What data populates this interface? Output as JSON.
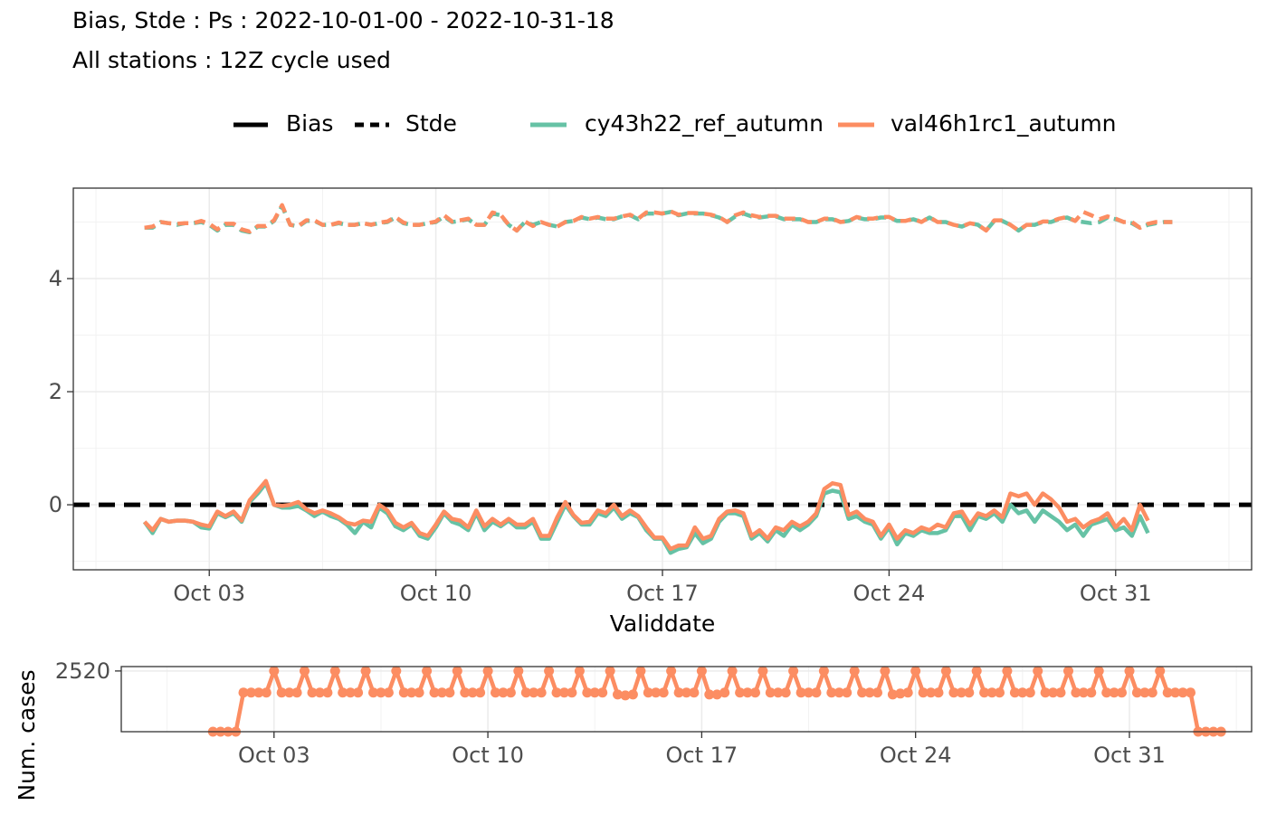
{
  "title": "Bias, Stde : Ps : 2022-10-01-00 - 2022-10-31-18",
  "subtitle": "All stations : 12Z cycle used",
  "legend": {
    "linetype": [
      {
        "label": "Bias",
        "style": "solid"
      },
      {
        "label": "Stde",
        "style": "dashed"
      }
    ],
    "models": [
      {
        "label": "cy43h22_ref_autumn",
        "color": "#66c2a5"
      },
      {
        "label": "val46h1rc1_autumn",
        "color": "#fc8d62"
      }
    ]
  },
  "chart_data": [
    {
      "type": "line",
      "xlabel": "Validdate",
      "ylabel": "",
      "xlim": [
        -2.2,
        34.2
      ],
      "ylim": [
        -1.15,
        5.6
      ],
      "x_ticks": [
        {
          "value": 2,
          "label": "Oct 03"
        },
        {
          "value": 9,
          "label": "Oct 10"
        },
        {
          "value": 16,
          "label": "Oct 17"
        },
        {
          "value": 23,
          "label": "Oct 24"
        },
        {
          "value": 30,
          "label": "Oct 31"
        }
      ],
      "y_ticks": [
        {
          "value": 0,
          "label": "0"
        },
        {
          "value": 2,
          "label": "2"
        },
        {
          "value": 4,
          "label": "4"
        }
      ],
      "x_unit": "days after 2022-10-01 00Z, 6-hourly",
      "reference_line": {
        "y": 0,
        "style": "dashed",
        "color": "#000000"
      },
      "grid": true,
      "series": [
        {
          "name": "cy43h22_ref_autumn",
          "metric": "Bias",
          "color": "#66c2a5",
          "style": "solid",
          "values": [
            -0.3,
            -0.5,
            -0.25,
            -0.3,
            -0.28,
            -0.28,
            -0.3,
            -0.4,
            -0.42,
            -0.15,
            -0.22,
            -0.15,
            -0.3,
            0.05,
            0.2,
            0.38,
            0.0,
            -0.05,
            -0.05,
            -0.02,
            -0.1,
            -0.2,
            -0.12,
            -0.2,
            -0.25,
            -0.35,
            -0.5,
            -0.3,
            -0.4,
            -0.05,
            -0.15,
            -0.38,
            -0.45,
            -0.35,
            -0.55,
            -0.6,
            -0.4,
            -0.15,
            -0.3,
            -0.35,
            -0.45,
            -0.15,
            -0.45,
            -0.3,
            -0.38,
            -0.28,
            -0.4,
            -0.4,
            -0.3,
            -0.6,
            -0.6,
            -0.3,
            0.0,
            -0.2,
            -0.35,
            -0.35,
            -0.15,
            -0.2,
            -0.05,
            -0.25,
            -0.15,
            -0.22,
            -0.45,
            -0.6,
            -0.6,
            -0.85,
            -0.78,
            -0.75,
            -0.5,
            -0.68,
            -0.6,
            -0.3,
            -0.15,
            -0.15,
            -0.2,
            -0.6,
            -0.5,
            -0.65,
            -0.45,
            -0.55,
            -0.35,
            -0.45,
            -0.35,
            -0.2,
            0.2,
            0.25,
            0.22,
            -0.25,
            -0.2,
            -0.3,
            -0.35,
            -0.6,
            -0.4,
            -0.7,
            -0.5,
            -0.55,
            -0.45,
            -0.5,
            -0.5,
            -0.45,
            -0.2,
            -0.2,
            -0.45,
            -0.2,
            -0.25,
            -0.15,
            -0.3,
            0.0,
            -0.15,
            -0.1,
            -0.3,
            -0.1,
            -0.2,
            -0.3,
            -0.45,
            -0.35,
            -0.55,
            -0.35,
            -0.3,
            -0.25,
            -0.45,
            -0.4,
            -0.55,
            -0.2,
            -0.5
          ]
        },
        {
          "name": "val46h1rc1_autumn",
          "metric": "Bias",
          "color": "#fc8d62",
          "style": "solid",
          "values": [
            -0.3,
            -0.45,
            -0.25,
            -0.3,
            -0.28,
            -0.28,
            -0.3,
            -0.35,
            -0.38,
            -0.12,
            -0.2,
            -0.12,
            -0.28,
            0.08,
            0.25,
            0.42,
            0.0,
            -0.02,
            0.0,
            0.05,
            -0.08,
            -0.15,
            -0.1,
            -0.15,
            -0.22,
            -0.32,
            -0.35,
            -0.28,
            -0.3,
            -0.0,
            -0.1,
            -0.32,
            -0.4,
            -0.32,
            -0.5,
            -0.55,
            -0.35,
            -0.12,
            -0.25,
            -0.28,
            -0.4,
            -0.1,
            -0.38,
            -0.25,
            -0.35,
            -0.25,
            -0.35,
            -0.35,
            -0.25,
            -0.55,
            -0.55,
            -0.22,
            0.05,
            -0.18,
            -0.32,
            -0.3,
            -0.1,
            -0.15,
            0.0,
            -0.2,
            -0.1,
            -0.2,
            -0.4,
            -0.58,
            -0.58,
            -0.78,
            -0.72,
            -0.72,
            -0.4,
            -0.6,
            -0.55,
            -0.25,
            -0.12,
            -0.1,
            -0.15,
            -0.55,
            -0.45,
            -0.6,
            -0.4,
            -0.45,
            -0.3,
            -0.38,
            -0.3,
            -0.15,
            0.28,
            0.38,
            0.35,
            -0.18,
            -0.12,
            -0.25,
            -0.3,
            -0.55,
            -0.35,
            -0.6,
            -0.45,
            -0.5,
            -0.4,
            -0.45,
            -0.35,
            -0.4,
            -0.15,
            -0.12,
            -0.35,
            -0.15,
            -0.2,
            -0.1,
            -0.22,
            0.2,
            0.15,
            0.2,
            0.0,
            0.2,
            0.1,
            -0.05,
            -0.3,
            -0.25,
            -0.4,
            -0.3,
            -0.25,
            -0.15,
            -0.4,
            -0.25,
            -0.45,
            0.0,
            -0.28
          ]
        },
        {
          "name": "cy43h22_ref_autumn",
          "metric": "Stde",
          "color": "#66c2a5",
          "style": "dashed",
          "values": [
            4.9,
            4.9,
            5.0,
            4.98,
            4.95,
            4.98,
            4.98,
            5.0,
            4.95,
            4.85,
            4.95,
            4.95,
            4.85,
            4.82,
            4.92,
            4.92,
            5.02,
            5.28,
            4.95,
            4.92,
            5.02,
            5.02,
            4.95,
            4.95,
            4.98,
            4.95,
            4.95,
            4.98,
            4.95,
            4.98,
            5.0,
            5.08,
            4.98,
            4.95,
            4.95,
            4.98,
            5.0,
            5.1,
            5.0,
            5.02,
            5.05,
            4.95,
            4.95,
            5.15,
            5.12,
            4.95,
            4.85,
            5.0,
            4.95,
            5.0,
            4.95,
            4.92,
            5.0,
            5.02,
            5.08,
            5.05,
            5.08,
            5.05,
            5.05,
            5.1,
            5.12,
            5.05,
            5.15,
            5.15,
            5.15,
            5.18,
            5.12,
            5.15,
            5.15,
            5.15,
            5.12,
            5.08,
            5.0,
            5.1,
            5.15,
            5.1,
            5.08,
            5.1,
            5.1,
            5.05,
            5.05,
            5.05,
            5.0,
            5.0,
            5.05,
            5.05,
            5.0,
            5.02,
            5.08,
            5.05,
            5.05,
            5.08,
            5.08,
            5.02,
            5.02,
            5.05,
            5.0,
            5.08,
            5.0,
            5.0,
            4.95,
            4.92,
            4.98,
            4.95,
            4.85,
            5.02,
            5.02,
            4.95,
            4.85,
            4.95,
            4.95,
            5.0,
            5.0,
            5.05,
            5.08,
            5.02,
            5.0,
            4.98,
            5.0,
            5.08,
            5.05,
            5.0,
            4.98,
            4.9,
            4.95,
            4.98,
            5.0,
            5.0
          ]
        },
        {
          "name": "val46h1rc1_autumn",
          "metric": "Stde",
          "color": "#fc8d62",
          "style": "dashed",
          "values": [
            4.9,
            4.92,
            5.0,
            4.98,
            4.97,
            4.98,
            4.98,
            5.02,
            4.97,
            4.87,
            4.97,
            4.97,
            4.87,
            4.83,
            4.93,
            4.93,
            5.03,
            5.3,
            4.95,
            4.93,
            5.03,
            5.03,
            4.95,
            4.95,
            4.99,
            4.95,
            4.95,
            4.98,
            4.95,
            4.99,
            5.01,
            5.09,
            4.99,
            4.95,
            4.95,
            4.98,
            5.01,
            5.12,
            5.01,
            5.03,
            5.06,
            4.95,
            4.95,
            5.17,
            5.13,
            4.95,
            4.85,
            5.01,
            4.93,
            5.0,
            4.95,
            4.92,
            5.0,
            5.02,
            5.09,
            5.06,
            5.09,
            5.06,
            5.06,
            5.1,
            5.13,
            5.06,
            5.17,
            5.17,
            5.15,
            5.19,
            5.13,
            5.16,
            5.16,
            5.15,
            5.13,
            5.09,
            5.0,
            5.12,
            5.17,
            5.12,
            5.09,
            5.11,
            5.11,
            5.06,
            5.06,
            5.06,
            5.0,
            5.0,
            5.06,
            5.06,
            5.0,
            5.02,
            5.09,
            5.06,
            5.06,
            5.09,
            5.09,
            5.02,
            5.02,
            5.06,
            5.0,
            5.09,
            5.0,
            5.0,
            4.95,
            4.92,
            4.98,
            4.95,
            4.85,
            5.03,
            5.03,
            4.95,
            4.85,
            4.95,
            4.95,
            5.01,
            5.01,
            5.06,
            5.09,
            5.02,
            5.18,
            5.12,
            5.05,
            5.1,
            5.06,
            5.0,
            5.0,
            4.9,
            4.97,
            5.0,
            5.0,
            5.0
          ]
        }
      ]
    },
    {
      "type": "line",
      "xlabel": "",
      "ylabel": "Num. cases",
      "xlim": [
        -3.0,
        34.0
      ],
      "ylim": [
        1900,
        2565
      ],
      "x_ticks": [
        {
          "value": 2,
          "label": "Oct 03"
        },
        {
          "value": 9,
          "label": "Oct 10"
        },
        {
          "value": 16,
          "label": "Oct 17"
        },
        {
          "value": 23,
          "label": "Oct 24"
        },
        {
          "value": 30,
          "label": "Oct 31"
        }
      ],
      "y_ticks": [
        {
          "value": 2520,
          "label": "2520"
        }
      ],
      "x_unit": "days after 2022-10-01 00Z, 6-hourly",
      "grid": true,
      "markers": true,
      "series": [
        {
          "name": "val46h1rc1_autumn",
          "color": "#fc8d62",
          "values": [
            1900,
            1900,
            1900,
            1900,
            2300,
            2300,
            2300,
            2300,
            2520,
            2300,
            2300,
            2300,
            2520,
            2300,
            2300,
            2300,
            2520,
            2300,
            2300,
            2300,
            2520,
            2300,
            2300,
            2300,
            2520,
            2300,
            2300,
            2300,
            2520,
            2300,
            2300,
            2300,
            2520,
            2300,
            2300,
            2300,
            2520,
            2300,
            2300,
            2300,
            2520,
            2300,
            2300,
            2300,
            2520,
            2300,
            2300,
            2300,
            2520,
            2300,
            2300,
            2300,
            2520,
            2280,
            2270,
            2280,
            2520,
            2300,
            2300,
            2300,
            2520,
            2300,
            2300,
            2300,
            2520,
            2280,
            2280,
            2300,
            2520,
            2300,
            2300,
            2300,
            2520,
            2300,
            2300,
            2300,
            2520,
            2300,
            2300,
            2300,
            2520,
            2300,
            2300,
            2300,
            2520,
            2300,
            2300,
            2300,
            2520,
            2280,
            2290,
            2300,
            2520,
            2300,
            2300,
            2300,
            2520,
            2300,
            2300,
            2300,
            2520,
            2300,
            2300,
            2300,
            2520,
            2300,
            2300,
            2300,
            2520,
            2300,
            2300,
            2300,
            2520,
            2300,
            2300,
            2300,
            2520,
            2300,
            2300,
            2300,
            2520,
            2300,
            2300,
            2300,
            2520,
            2300,
            2300,
            2300,
            2300,
            1900,
            1900,
            1900,
            1900
          ]
        }
      ]
    }
  ]
}
